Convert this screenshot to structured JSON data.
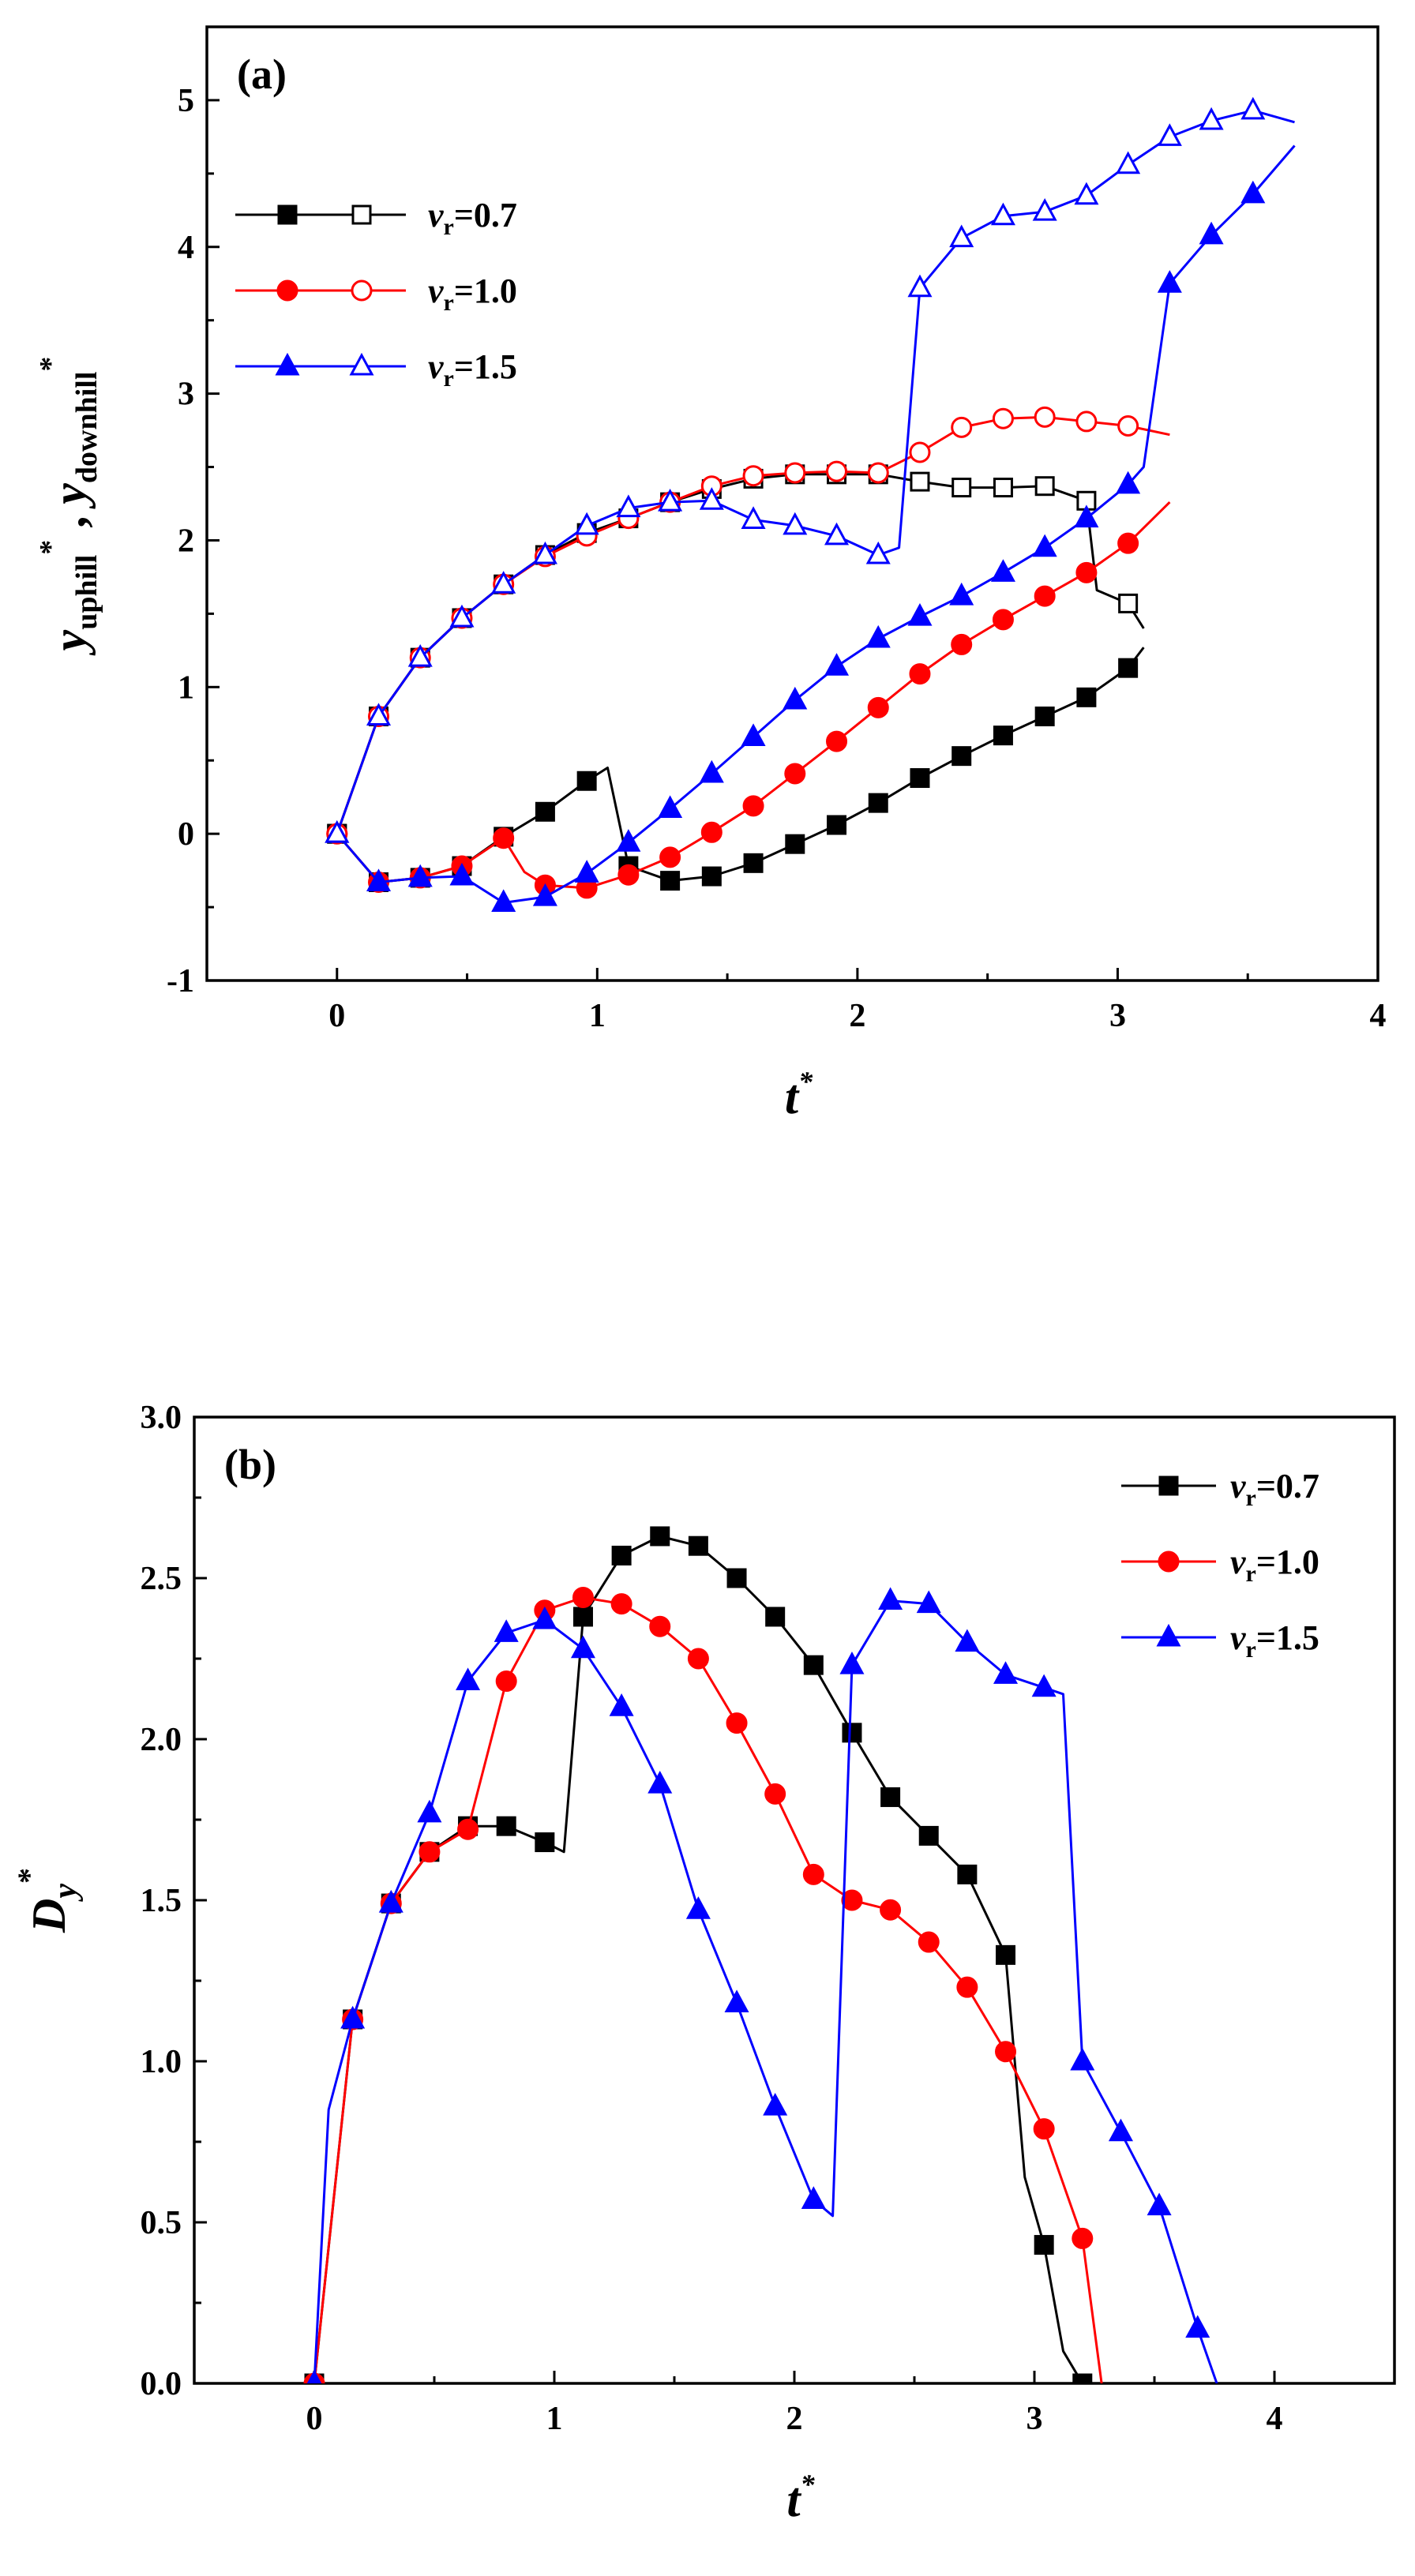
{
  "chart_data": [
    {
      "type": "line",
      "panel_label": "(a)",
      "xlabel": {
        "main": "t",
        "sup": "*"
      },
      "ylabel": {
        "p1": "y",
        "p1_sub": "uphill",
        "p1_sup": "*",
        "sep": " , ",
        "p2": "y",
        "p2_sub": "downhill",
        "p2_sup": "*"
      },
      "xlim": [
        -0.5,
        4
      ],
      "ylim": [
        -1,
        5.5
      ],
      "xticks": [
        0,
        1,
        2,
        3,
        4
      ],
      "yticks": [
        -1,
        0,
        1,
        2,
        3,
        4,
        5
      ],
      "legend_position": "top-left",
      "series": [
        {
          "name": "v_r=0.7",
          "legend": {
            "v": "v",
            "sub": "r",
            "rest": "=0.7"
          },
          "color": "#000000",
          "marker": "square",
          "uphill": [
            [
              0,
              0
            ],
            [
              0.16,
              -0.33
            ],
            [
              0.32,
              -0.3
            ],
            [
              0.48,
              -0.22
            ],
            [
              0.64,
              -0.02
            ],
            [
              0.8,
              0.15
            ],
            [
              0.96,
              0.36
            ],
            [
              1.04,
              0.45
            ],
            [
              1.12,
              -0.22
            ],
            [
              1.28,
              -0.32
            ],
            [
              1.44,
              -0.29
            ],
            [
              1.6,
              -0.2
            ],
            [
              1.76,
              -0.07
            ],
            [
              1.92,
              0.06
            ],
            [
              2.08,
              0.21
            ],
            [
              2.24,
              0.38
            ],
            [
              2.4,
              0.53
            ],
            [
              2.56,
              0.67
            ],
            [
              2.72,
              0.8
            ],
            [
              2.88,
              0.93
            ],
            [
              3.04,
              1.13
            ],
            [
              3.1,
              1.27
            ]
          ],
          "downhill": [
            [
              0,
              0
            ],
            [
              0.16,
              0.8
            ],
            [
              0.32,
              1.2
            ],
            [
              0.48,
              1.47
            ],
            [
              0.64,
              1.7
            ],
            [
              0.8,
              1.9
            ],
            [
              0.96,
              2.05
            ],
            [
              1.12,
              2.15
            ],
            [
              1.28,
              2.26
            ],
            [
              1.44,
              2.35
            ],
            [
              1.6,
              2.42
            ],
            [
              1.76,
              2.45
            ],
            [
              1.92,
              2.45
            ],
            [
              2.08,
              2.45
            ],
            [
              2.24,
              2.4
            ],
            [
              2.4,
              2.36
            ],
            [
              2.56,
              2.36
            ],
            [
              2.72,
              2.37
            ],
            [
              2.88,
              2.27
            ],
            [
              2.92,
              1.66
            ],
            [
              3.04,
              1.57
            ],
            [
              3.1,
              1.4
            ]
          ]
        },
        {
          "name": "v_r=1.0",
          "legend": {
            "v": "v",
            "sub": "r",
            "rest": "=1.0"
          },
          "color": "#ff0000",
          "marker": "circle",
          "uphill": [
            [
              0,
              0
            ],
            [
              0.16,
              -0.33
            ],
            [
              0.32,
              -0.3
            ],
            [
              0.48,
              -0.22
            ],
            [
              0.64,
              -0.03
            ],
            [
              0.72,
              -0.26
            ],
            [
              0.8,
              -0.35
            ],
            [
              0.96,
              -0.37
            ],
            [
              1.12,
              -0.28
            ],
            [
              1.28,
              -0.16
            ],
            [
              1.44,
              0.01
            ],
            [
              1.6,
              0.19
            ],
            [
              1.76,
              0.41
            ],
            [
              1.92,
              0.63
            ],
            [
              2.08,
              0.86
            ],
            [
              2.24,
              1.09
            ],
            [
              2.4,
              1.29
            ],
            [
              2.56,
              1.46
            ],
            [
              2.72,
              1.62
            ],
            [
              2.88,
              1.78
            ],
            [
              3.04,
              1.98
            ],
            [
              3.2,
              2.26
            ]
          ],
          "downhill": [
            [
              0,
              0
            ],
            [
              0.16,
              0.8
            ],
            [
              0.32,
              1.2
            ],
            [
              0.48,
              1.47
            ],
            [
              0.64,
              1.7
            ],
            [
              0.8,
              1.89
            ],
            [
              0.96,
              2.03
            ],
            [
              1.12,
              2.15
            ],
            [
              1.28,
              2.26
            ],
            [
              1.44,
              2.37
            ],
            [
              1.6,
              2.44
            ],
            [
              1.76,
              2.46
            ],
            [
              1.92,
              2.47
            ],
            [
              2.08,
              2.46
            ],
            [
              2.24,
              2.6
            ],
            [
              2.4,
              2.77
            ],
            [
              2.56,
              2.83
            ],
            [
              2.72,
              2.84
            ],
            [
              2.88,
              2.81
            ],
            [
              3.04,
              2.78
            ],
            [
              3.2,
              2.72
            ]
          ]
        },
        {
          "name": "v_r=1.5",
          "legend": {
            "v": "v",
            "sub": "r",
            "rest": "=1.5"
          },
          "color": "#0000ff",
          "marker": "triangle",
          "uphill": [
            [
              0,
              0
            ],
            [
              0.16,
              -0.33
            ],
            [
              0.32,
              -0.3
            ],
            [
              0.48,
              -0.29
            ],
            [
              0.64,
              -0.47
            ],
            [
              0.8,
              -0.43
            ],
            [
              0.96,
              -0.27
            ],
            [
              1.12,
              -0.06
            ],
            [
              1.28,
              0.17
            ],
            [
              1.44,
              0.41
            ],
            [
              1.6,
              0.66
            ],
            [
              1.76,
              0.91
            ],
            [
              1.92,
              1.14
            ],
            [
              2.08,
              1.33
            ],
            [
              2.24,
              1.48
            ],
            [
              2.4,
              1.62
            ],
            [
              2.56,
              1.78
            ],
            [
              2.72,
              1.95
            ],
            [
              2.88,
              2.15
            ],
            [
              3.04,
              2.38
            ],
            [
              3.1,
              2.5
            ],
            [
              3.2,
              3.75
            ],
            [
              3.36,
              4.08
            ],
            [
              3.52,
              4.36
            ],
            [
              3.68,
              4.69
            ]
          ],
          "downhill": [
            [
              0,
              0
            ],
            [
              0.16,
              0.8
            ],
            [
              0.32,
              1.2
            ],
            [
              0.48,
              1.47
            ],
            [
              0.64,
              1.7
            ],
            [
              0.8,
              1.9
            ],
            [
              0.96,
              2.1
            ],
            [
              1.12,
              2.22
            ],
            [
              1.28,
              2.26
            ],
            [
              1.44,
              2.27
            ],
            [
              1.6,
              2.14
            ],
            [
              1.76,
              2.1
            ],
            [
              1.92,
              2.03
            ],
            [
              2.08,
              1.9
            ],
            [
              2.16,
              1.95
            ],
            [
              2.24,
              3.72
            ],
            [
              2.4,
              4.06
            ],
            [
              2.56,
              4.21
            ],
            [
              2.72,
              4.24
            ],
            [
              2.88,
              4.35
            ],
            [
              3.04,
              4.56
            ],
            [
              3.2,
              4.75
            ],
            [
              3.36,
              4.86
            ],
            [
              3.52,
              4.93
            ],
            [
              3.68,
              4.85
            ]
          ]
        }
      ]
    },
    {
      "type": "line",
      "panel_label": "(b)",
      "xlabel": {
        "main": "t",
        "sup": "*"
      },
      "ylabel": {
        "main": "D",
        "sub": "y",
        "sup": "*"
      },
      "xlim": [
        -0.5,
        4.5
      ],
      "ylim": [
        0,
        3.0
      ],
      "xticks": [
        0,
        1,
        2,
        3,
        4
      ],
      "yticks": [
        "0.0",
        "0.5",
        "1.0",
        "1.5",
        "2.0",
        "2.5",
        "3.0"
      ],
      "legend_position": "top-right",
      "series": [
        {
          "name": "v_r=0.7",
          "legend": {
            "v": "v",
            "sub": "r",
            "rest": "=0.7"
          },
          "color": "#000000",
          "marker": "square",
          "values": [
            [
              0,
              0
            ],
            [
              0.16,
              1.13
            ],
            [
              0.32,
              1.49
            ],
            [
              0.48,
              1.65
            ],
            [
              0.64,
              1.73
            ],
            [
              0.8,
              1.73
            ],
            [
              0.96,
              1.68
            ],
            [
              1.04,
              1.65
            ],
            [
              1.12,
              2.38
            ],
            [
              1.28,
              2.57
            ],
            [
              1.44,
              2.63
            ],
            [
              1.6,
              2.6
            ],
            [
              1.76,
              2.5
            ],
            [
              1.92,
              2.38
            ],
            [
              2.08,
              2.23
            ],
            [
              2.24,
              2.02
            ],
            [
              2.4,
              1.82
            ],
            [
              2.56,
              1.7
            ],
            [
              2.72,
              1.58
            ],
            [
              2.88,
              1.33
            ],
            [
              2.96,
              0.64
            ],
            [
              3.04,
              0.43
            ],
            [
              3.12,
              0.1
            ],
            [
              3.2,
              0
            ]
          ]
        },
        {
          "name": "v_r=1.0",
          "legend": {
            "v": "v",
            "sub": "r",
            "rest": "=1.0"
          },
          "color": "#ff0000",
          "marker": "circle",
          "values": [
            [
              0,
              0
            ],
            [
              0.16,
              1.13
            ],
            [
              0.32,
              1.49
            ],
            [
              0.48,
              1.65
            ],
            [
              0.64,
              1.72
            ],
            [
              0.8,
              2.18
            ],
            [
              0.96,
              2.4
            ],
            [
              1.12,
              2.44
            ],
            [
              1.28,
              2.42
            ],
            [
              1.44,
              2.35
            ],
            [
              1.6,
              2.25
            ],
            [
              1.76,
              2.05
            ],
            [
              1.92,
              1.83
            ],
            [
              2.08,
              1.58
            ],
            [
              2.24,
              1.5
            ],
            [
              2.4,
              1.47
            ],
            [
              2.56,
              1.37
            ],
            [
              2.72,
              1.23
            ],
            [
              2.88,
              1.03
            ],
            [
              3.04,
              0.79
            ],
            [
              3.2,
              0.45
            ],
            [
              3.28,
              0
            ]
          ]
        },
        {
          "name": "v_r=1.5",
          "legend": {
            "v": "v",
            "sub": "r",
            "rest": "=1.5"
          },
          "color": "#0000ff",
          "marker": "triangle",
          "values": [
            [
              0,
              0
            ],
            [
              0.06,
              0.85
            ],
            [
              0.16,
              1.13
            ],
            [
              0.32,
              1.49
            ],
            [
              0.48,
              1.77
            ],
            [
              0.64,
              2.18
            ],
            [
              0.8,
              2.33
            ],
            [
              0.96,
              2.37
            ],
            [
              1.12,
              2.28
            ],
            [
              1.28,
              2.1
            ],
            [
              1.44,
              1.86
            ],
            [
              1.6,
              1.47
            ],
            [
              1.76,
              1.18
            ],
            [
              1.92,
              0.86
            ],
            [
              2.08,
              0.57
            ],
            [
              2.16,
              0.52
            ],
            [
              2.24,
              2.23
            ],
            [
              2.4,
              2.43
            ],
            [
              2.56,
              2.42
            ],
            [
              2.72,
              2.3
            ],
            [
              2.88,
              2.2
            ],
            [
              3.04,
              2.16
            ],
            [
              3.12,
              2.14
            ],
            [
              3.2,
              1.0
            ],
            [
              3.36,
              0.78
            ],
            [
              3.52,
              0.55
            ],
            [
              3.68,
              0.17
            ],
            [
              3.76,
              0
            ]
          ]
        }
      ]
    }
  ]
}
